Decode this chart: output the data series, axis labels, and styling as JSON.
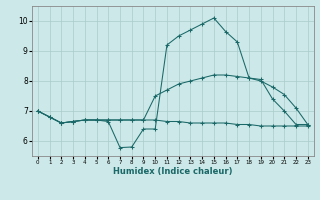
{
  "xlabel": "Humidex (Indice chaleur)",
  "bg_color": "#cce8e8",
  "grid_color": "#aacccc",
  "line_color": "#1a6868",
  "xlim": [
    -0.5,
    23.5
  ],
  "ylim": [
    5.5,
    10.5
  ],
  "xticks": [
    0,
    1,
    2,
    3,
    4,
    5,
    6,
    7,
    8,
    9,
    10,
    11,
    12,
    13,
    14,
    15,
    16,
    17,
    18,
    19,
    20,
    21,
    22,
    23
  ],
  "yticks": [
    6,
    7,
    8,
    9,
    10
  ],
  "lines": [
    [
      7.0,
      6.8,
      6.6,
      6.65,
      6.7,
      6.7,
      6.65,
      5.78,
      5.8,
      6.4,
      6.4,
      9.2,
      9.5,
      9.7,
      9.9,
      10.1,
      9.65,
      9.3,
      8.1,
      8.05,
      7.4,
      7.0,
      6.55,
      6.55
    ],
    [
      7.0,
      6.8,
      6.6,
      6.65,
      6.7,
      6.7,
      6.7,
      6.7,
      6.7,
      6.7,
      7.5,
      7.7,
      7.9,
      8.0,
      8.1,
      8.2,
      8.2,
      8.15,
      8.1,
      8.0,
      7.8,
      7.55,
      7.1,
      6.55
    ],
    [
      7.0,
      6.8,
      6.6,
      6.65,
      6.7,
      6.7,
      6.7,
      6.7,
      6.7,
      6.7,
      6.7,
      6.65,
      6.65,
      6.6,
      6.6,
      6.6,
      6.6,
      6.55,
      6.55,
      6.5,
      6.5,
      6.5,
      6.5,
      6.5
    ]
  ]
}
